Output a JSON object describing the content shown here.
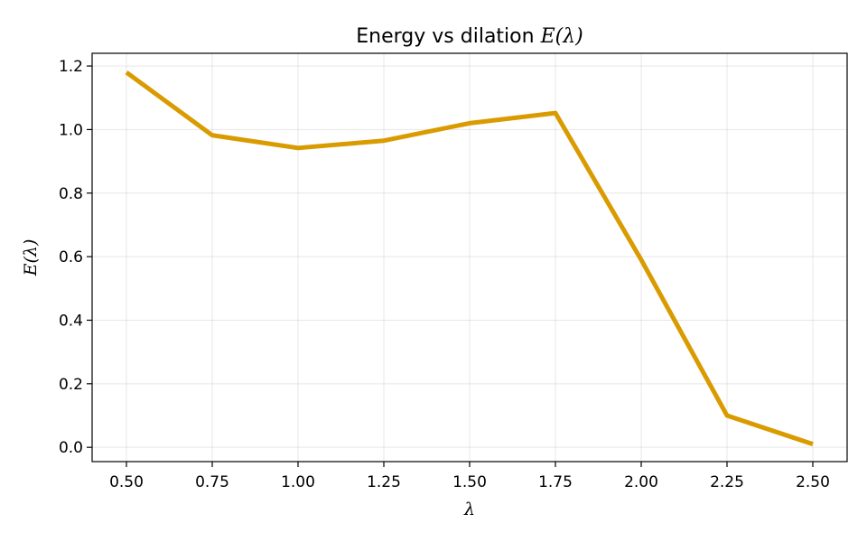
{
  "chart_data": {
    "type": "line",
    "title": "Energy vs dilation E(λ)",
    "title_plain": "Energy vs dilation ",
    "title_math": "E(λ)",
    "xlabel": "λ",
    "ylabel": "E(λ)",
    "x": [
      0.5,
      0.75,
      1.0,
      1.25,
      1.5,
      1.75,
      2.0,
      2.25,
      2.5
    ],
    "series": [
      {
        "values": [
          1.18,
          0.982,
          0.942,
          0.965,
          1.02,
          1.052,
          0.59,
          0.1,
          0.01
        ],
        "color": "#d99b00"
      }
    ],
    "xlim": [
      0.4,
      2.6
    ],
    "ylim": [
      -0.045,
      1.24
    ],
    "xticks": [
      "0.50",
      "0.75",
      "1.00",
      "1.25",
      "1.50",
      "1.75",
      "2.00",
      "2.25",
      "2.50"
    ],
    "xtick_values": [
      0.5,
      0.75,
      1.0,
      1.25,
      1.5,
      1.75,
      2.0,
      2.25,
      2.5
    ],
    "yticks": [
      "0.0",
      "0.2",
      "0.4",
      "0.6",
      "0.8",
      "1.0",
      "1.2"
    ],
    "ytick_values": [
      0.0,
      0.2,
      0.4,
      0.6,
      0.8,
      1.0,
      1.2
    ],
    "grid": true,
    "legend": "none"
  }
}
